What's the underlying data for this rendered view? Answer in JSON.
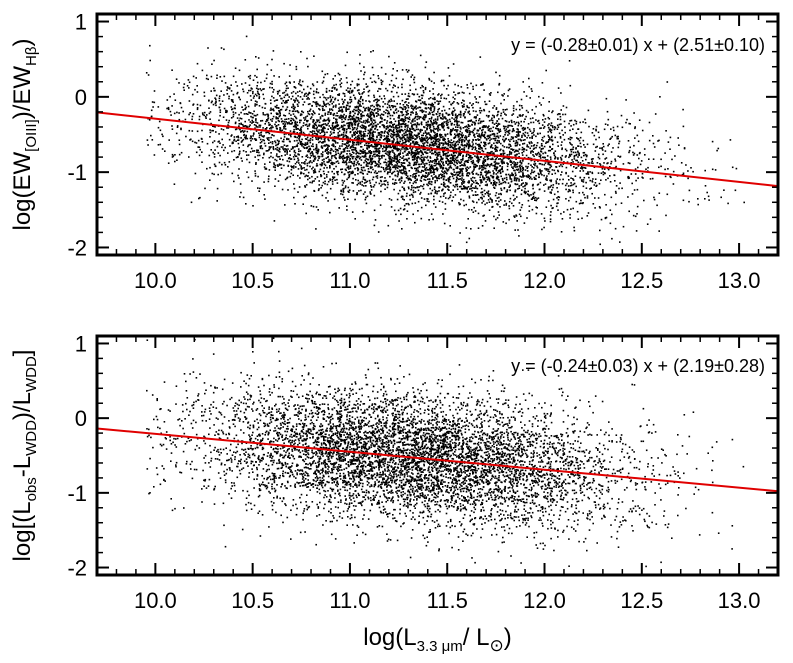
{
  "chart_data": [
    {
      "type": "scatter",
      "xlim": [
        9.7,
        13.2
      ],
      "ylim": [
        -2.1,
        1.1
      ],
      "x_ticks": [
        10.0,
        10.5,
        11.0,
        11.5,
        12.0,
        12.5,
        13.0
      ],
      "x_tick_labels": [
        "10.0",
        "10.5",
        "11.0",
        "11.5",
        "12.0",
        "12.5",
        "13.0"
      ],
      "y_ticks": [
        1,
        0,
        -1,
        -2
      ],
      "y_tick_labels": [
        "1",
        "0",
        "-1",
        "-2"
      ],
      "ylabel": "log(EW[OIII]/EWHβ)",
      "ylabel_parts": {
        "pre": "log(EW",
        "sub1": "[OIII]",
        "mid": ")/EW",
        "sub2": "Hβ",
        "post": ")"
      },
      "fit_label": "y = (-0.28±0.01) x + (2.51±0.10)",
      "fit": {
        "slope": -0.28,
        "intercept": 2.51,
        "color": "#e00000"
      },
      "point_cloud": {
        "x_center": 11.3,
        "x_spread": 0.55,
        "y_at_x_center": -0.62,
        "y_slope": -0.28,
        "y_spread": 0.38,
        "count": 6500,
        "color": "#000000"
      },
      "grid": false
    },
    {
      "type": "scatter",
      "xlim": [
        9.7,
        13.2
      ],
      "ylim": [
        -2.1,
        1.1
      ],
      "x_ticks": [
        10.0,
        10.5,
        11.0,
        11.5,
        12.0,
        12.5,
        13.0
      ],
      "x_tick_labels": [
        "10.0",
        "10.5",
        "11.0",
        "11.5",
        "12.0",
        "12.5",
        "13.0"
      ],
      "y_ticks": [
        1,
        0,
        -1,
        -2
      ],
      "y_tick_labels": [
        "1",
        "0",
        "-1",
        "-2"
      ],
      "xlabel": "log(L3.3 μm/ L☉)",
      "xlabel_parts": {
        "pre": "log(L",
        "sub": "3.3 μm",
        "post": "/ L",
        "sun": "⊙",
        "end": ")"
      },
      "ylabel": "log[(Lobs-LWDD)/LWDD]",
      "ylabel_parts": {
        "pre": "log[(L",
        "sub1": "obs",
        "mid1": "-L",
        "sub2": "WDD",
        "mid2": ")/L",
        "sub3": "WDD",
        "post": "]"
      },
      "fit_label": "y = (-0.24±0.03) x + (2.19±0.28)",
      "fit": {
        "slope": -0.24,
        "intercept": 2.19,
        "color": "#e00000"
      },
      "point_cloud": {
        "x_center": 11.3,
        "x_spread": 0.55,
        "y_at_x_center": -0.52,
        "y_slope": -0.24,
        "y_spread": 0.42,
        "count": 6500,
        "color": "#000000"
      },
      "grid": false
    }
  ]
}
